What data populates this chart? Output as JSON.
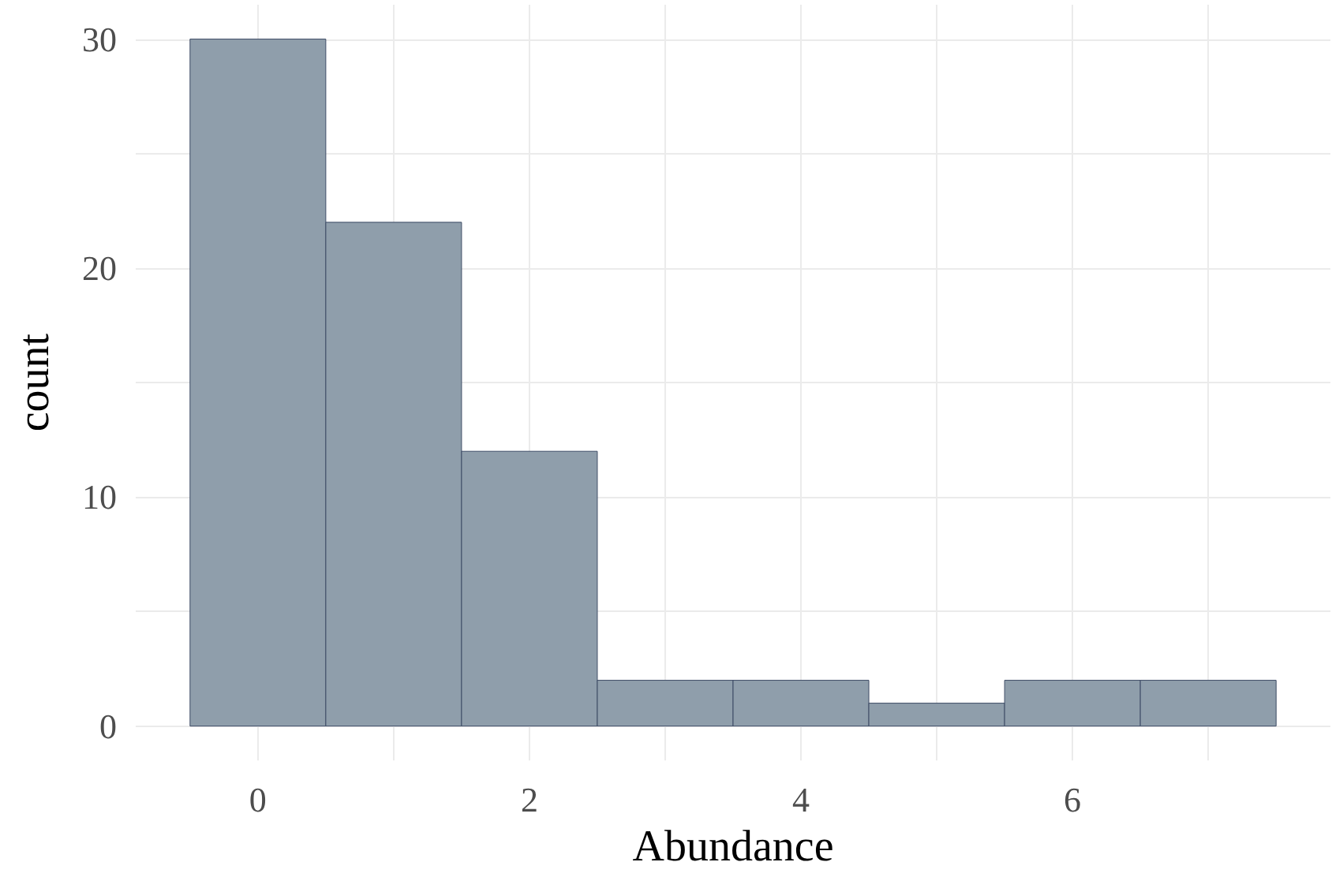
{
  "chart_data": {
    "type": "histogram",
    "xlabel": "Abundance",
    "ylabel": "count",
    "bins": [
      -0.5,
      0.5,
      1.5,
      2.5,
      3.5,
      4.5,
      5.5,
      6.5,
      7.5
    ],
    "values": [
      30,
      22,
      12,
      2,
      2,
      1,
      2,
      2
    ],
    "color": "#8f9eab",
    "xlim": [
      -0.9,
      7.9
    ],
    "ylim": [
      -1.5,
      31.5
    ],
    "xticks": [
      0,
      {
        "value": 1,
        "label": null
      },
      2,
      {
        "value": 3,
        "label": null
      },
      4,
      {
        "value": 5,
        "label": null
      },
      6,
      {
        "value": 7,
        "label": null
      }
    ],
    "yticks": [
      0,
      {
        "value": 5,
        "label": null
      },
      10,
      {
        "value": 15,
        "label": null
      },
      20,
      {
        "value": 25,
        "label": null
      },
      30
    ],
    "grid": true
  }
}
